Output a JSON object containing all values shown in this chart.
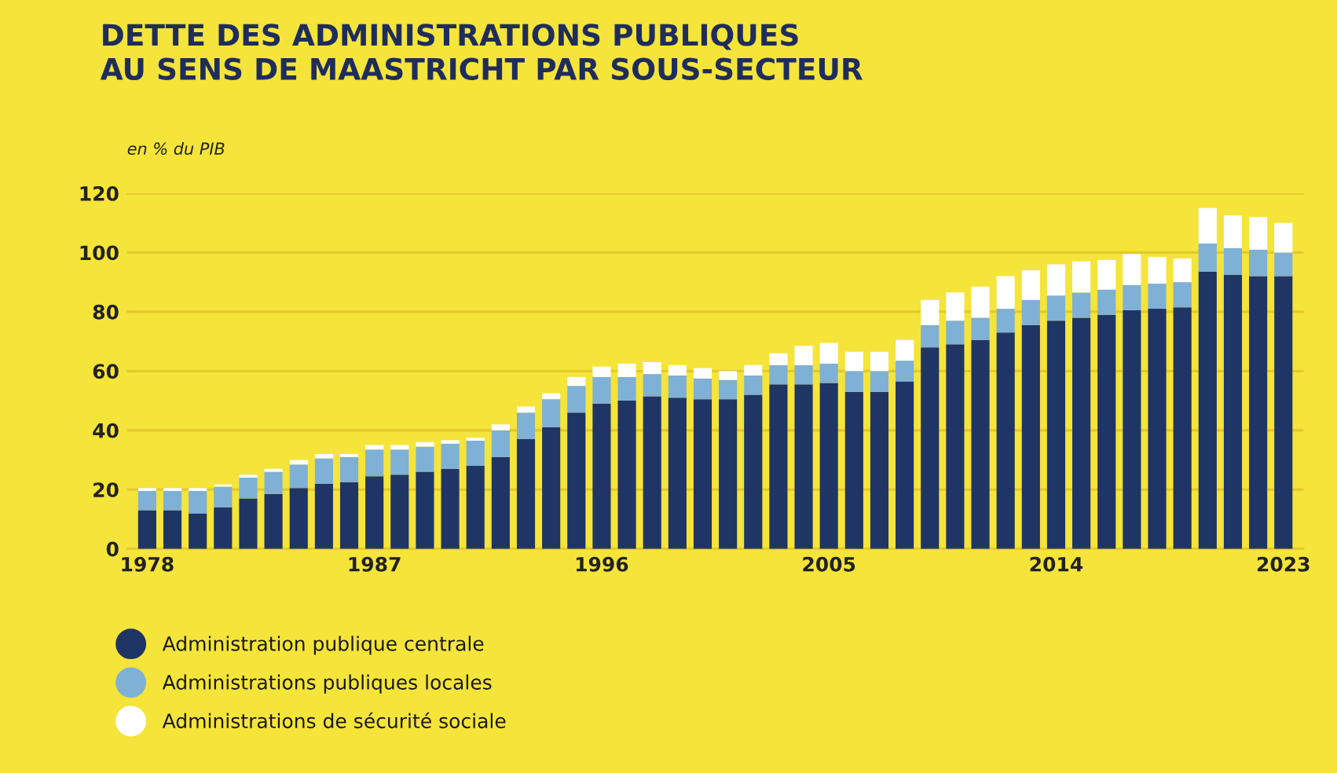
{
  "chart_data": {
    "type": "bar",
    "stacked": true,
    "title": "DETTE DES ADMINISTRATIONS PUBLIQUES\nAU SENS DE MAASTRICHT PAR SOUS-SECTEUR",
    "ylabel": "en % du PIB",
    "categories": [
      "1978",
      null,
      null,
      null,
      null,
      null,
      null,
      null,
      null,
      "1987",
      null,
      null,
      null,
      null,
      null,
      null,
      null,
      null,
      "1996",
      null,
      null,
      null,
      null,
      null,
      null,
      null,
      null,
      "2005",
      null,
      null,
      null,
      null,
      null,
      null,
      null,
      null,
      "2014",
      null,
      null,
      null,
      null,
      null,
      null,
      null,
      null,
      "2023"
    ],
    "series": [
      {
        "name": "Administration publique centrale",
        "color": "#1f3566",
        "values": [
          13,
          13,
          12,
          14,
          17,
          18.5,
          20.5,
          22,
          22.5,
          24.5,
          25,
          26,
          27,
          28,
          31,
          37,
          41,
          46,
          49,
          50,
          51.5,
          51,
          50.5,
          50.5,
          52,
          55.5,
          55.5,
          56,
          53,
          53,
          56.5,
          68,
          69,
          70.5,
          73,
          75.5,
          77,
          78,
          79,
          80.5,
          81,
          81.5,
          93.5,
          92.5,
          92,
          92
        ]
      },
      {
        "name": "Administrations publiques locales",
        "color": "#7fb0d6",
        "values": [
          6.5,
          6.5,
          7.5,
          7,
          7,
          7.5,
          8,
          8.5,
          8.5,
          9,
          8.5,
          8.5,
          8.5,
          8.5,
          9,
          9,
          9.5,
          9,
          9,
          8,
          7.5,
          7.5,
          7,
          6.5,
          6.5,
          6.5,
          6.5,
          6.5,
          7,
          7,
          7,
          7.5,
          8,
          7.5,
          8,
          8.5,
          8.5,
          8.5,
          8.5,
          8.5,
          8.5,
          8.5,
          9.5,
          9,
          9,
          8
        ]
      },
      {
        "name": "Administrations de sécurité sociale",
        "color": "#ffffff",
        "values": [
          1,
          1,
          1,
          0.7,
          1,
          1,
          1.5,
          1.5,
          1,
          1.5,
          1.5,
          1.5,
          1.2,
          1,
          2,
          2,
          2,
          3,
          3.5,
          4.5,
          4,
          3.5,
          3.5,
          3,
          3.5,
          4,
          6.5,
          7,
          6.5,
          6.5,
          7,
          8.5,
          9.5,
          10.5,
          11,
          10,
          10.5,
          10.5,
          10,
          10.5,
          9,
          8,
          12,
          11,
          11,
          10
        ]
      }
    ],
    "ylim": [
      0,
      120
    ],
    "yticks": [
      0,
      20,
      40,
      60,
      80,
      100,
      120
    ],
    "grid": "y",
    "legend": "bottom left"
  }
}
